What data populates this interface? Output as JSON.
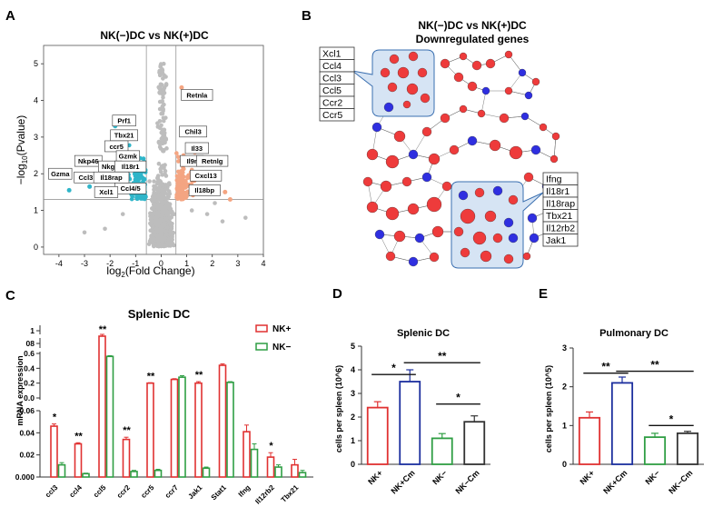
{
  "panels": {
    "A": {
      "label": "A",
      "title": "NK(−)DC vs NK(+)DC",
      "chart_data": {
        "type": "scatter",
        "title": "NK(−)DC vs NK(+)DC",
        "xlabel_main": "log",
        "xlabel_sub": "2",
        "xlabel_rest": "(Fold Change)",
        "ylabel_main": "−log",
        "ylabel_sub": "10",
        "ylabel_rest": "(Pvalue)",
        "xlim": [
          -4.6,
          4.0
        ],
        "ylim": [
          -0.2,
          5.5
        ],
        "xticks": [
          -4,
          -3,
          -2,
          -1,
          0,
          1,
          2,
          3,
          4
        ],
        "yticks": [
          0,
          1,
          2,
          3,
          4,
          5
        ],
        "threshold_x": [
          -0.58,
          0.58
        ],
        "threshold_y": 1.3,
        "down_labels": [
          {
            "text": "Prf1",
            "x": -1.45,
            "y": 3.45
          },
          {
            "text": "Tbx21",
            "x": -1.45,
            "y": 3.05
          },
          {
            "text": "ccr5",
            "x": -1.75,
            "y": 2.75
          },
          {
            "text": "Gzmk",
            "x": -1.3,
            "y": 2.48
          },
          {
            "text": "Nkp46",
            "x": -2.85,
            "y": 2.35
          },
          {
            "text": "Nkg7",
            "x": -2.0,
            "y": 2.2
          },
          {
            "text": "Il18r1",
            "x": -1.2,
            "y": 2.2
          },
          {
            "text": "Gzma",
            "x": -3.95,
            "y": 2.0
          },
          {
            "text": "Ccl3",
            "x": -2.95,
            "y": 1.9
          },
          {
            "text": "Il18rap",
            "x": -1.95,
            "y": 1.9
          },
          {
            "text": "Ccl4/5",
            "x": -1.2,
            "y": 1.6
          },
          {
            "text": "Xcl1",
            "x": -2.15,
            "y": 1.5
          }
        ],
        "up_labels": [
          {
            "text": "Retnla",
            "x": 1.4,
            "y": 4.15
          },
          {
            "text": "Chil3",
            "x": 1.25,
            "y": 3.15
          },
          {
            "text": "Il33",
            "x": 1.4,
            "y": 2.7
          },
          {
            "text": "Il9r",
            "x": 1.2,
            "y": 2.35
          },
          {
            "text": "Retnlg",
            "x": 2.0,
            "y": 2.35
          },
          {
            "text": "Cxcl13",
            "x": 1.75,
            "y": 1.95
          },
          {
            "text": "Il18bp",
            "x": 1.7,
            "y": 1.55
          }
        ],
        "colors": {
          "down": "#2fb5c9",
          "up": "#f4a582",
          "ns": "#bdbdbd"
        }
      }
    },
    "B": {
      "label": "B",
      "title_line1": "NK(−)DC vs NK(+)DC",
      "title_line2": "Downregulated genes",
      "cluster1_genes": [
        "Xcl1",
        "Ccl4",
        "Ccl3",
        "Ccl5",
        "Ccr2",
        "Ccr5"
      ],
      "cluster2_genes": [
        "Ifng",
        "Il18r1",
        "Il18rap",
        "Tbx21",
        "Il12rb2",
        "Jak1"
      ],
      "colors": {
        "red": "#ee3b3b",
        "blue": "#2f2fe0",
        "cluster_fill": "#d6e4f4",
        "cluster_stroke": "#3a6fb0"
      }
    },
    "C": {
      "label": "C",
      "chart_data": {
        "type": "bar",
        "title": "Splenic DC",
        "ylabel": "mRNA expression",
        "categories": [
          "ccl3",
          "ccl4",
          "ccl5",
          "ccr2",
          "ccr5",
          "ccr7",
          "Jak1",
          "Stat1",
          "Ifng",
          "Il12rb2",
          "Tbx21"
        ],
        "series": [
          {
            "name": "NK+",
            "color": "#e03131",
            "values": [
              0.046,
              0.03,
              0.09,
              0.034,
              0.2,
              0.25,
              0.2,
              0.44,
              0.041,
              0.018,
              0.011
            ],
            "errors": [
              0.002,
              0.001,
              0.005,
              0.002,
              0.005,
              0.01,
              0.02,
              0.02,
              0.006,
              0.004,
              0.005
            ]
          },
          {
            "name": "NK−",
            "color": "#2f9e44",
            "values": [
              0.011,
              0.003,
              0.56,
              0.005,
              0.006,
              0.28,
              0.008,
              0.21,
              0.025,
              0.009,
              0.004
            ],
            "errors": [
              0.002,
              0.0005,
              0.01,
              0.001,
              0.001,
              0.02,
              0.001,
              0.01,
              0.005,
              0.002,
              0.002
            ]
          }
        ],
        "y_segments": [
          {
            "range": [
              0,
              0.06
            ],
            "ticks": [
              "0.000",
              "0.02",
              "0.04",
              "0.06"
            ]
          },
          {
            "range": [
              0.0,
              0.6
            ],
            "ticks": [
              "0.0",
              "0.2",
              "0.4",
              "0.6"
            ]
          },
          {
            "range": [
              0.08,
              0.1
            ],
            "ticks": [
              "08"
            ]
          },
          {
            "range": [
              1,
              1
            ],
            "ticks": [
              "1"
            ]
          }
        ],
        "significance": [
          {
            "category": "ccl3",
            "text": "*"
          },
          {
            "category": "ccl4",
            "text": "**"
          },
          {
            "category": "ccl5",
            "text": "**"
          },
          {
            "category": "ccr2",
            "text": "**"
          },
          {
            "category": "ccr5",
            "text": "**"
          },
          {
            "category": "Jak1",
            "text": "**"
          },
          {
            "category": "Il12rb2",
            "text": "*"
          }
        ]
      }
    },
    "D": {
      "label": "D",
      "chart_data": {
        "type": "bar",
        "title": "Splenic DC",
        "ylabel": "cells per spleen (10^6)",
        "categories": [
          "NK+",
          "NK+Cm",
          "NK−",
          "NK−Cm"
        ],
        "values": [
          2.4,
          3.5,
          1.1,
          1.8
        ],
        "errors": [
          0.25,
          0.5,
          0.2,
          0.25
        ],
        "colors": [
          "#e03131",
          "#1c2f9e",
          "#2f9e44",
          "#333333"
        ],
        "ylim": [
          0,
          5
        ],
        "yticks": [
          0,
          1,
          2,
          3,
          4,
          5
        ],
        "brackets": [
          {
            "from": 0,
            "to": 1,
            "y": 3.8,
            "text": "*"
          },
          {
            "from": 1,
            "to": 3,
            "y": 4.3,
            "text": "**"
          },
          {
            "from": 2,
            "to": 3,
            "y": 2.55,
            "text": "*"
          }
        ]
      }
    },
    "E": {
      "label": "E",
      "chart_data": {
        "type": "bar",
        "title": "Pulmonary DC",
        "ylabel": "cells per spleen (10^5)",
        "categories": [
          "NK+",
          "NK+Cm",
          "NK−",
          "NK−Cm"
        ],
        "values": [
          1.2,
          2.1,
          0.7,
          0.8
        ],
        "errors": [
          0.15,
          0.15,
          0.1,
          0.05
        ],
        "colors": [
          "#e03131",
          "#1c2f9e",
          "#2f9e44",
          "#333333"
        ],
        "ylim": [
          0,
          3
        ],
        "yticks": [
          0,
          1,
          2,
          3
        ],
        "brackets": [
          {
            "from": 0,
            "to": 1,
            "y": 2.35,
            "text": "**"
          },
          {
            "from": 1,
            "to": 3,
            "y": 2.4,
            "text": "**"
          },
          {
            "from": 2,
            "to": 3,
            "y": 1.0,
            "text": "*"
          }
        ]
      }
    }
  }
}
